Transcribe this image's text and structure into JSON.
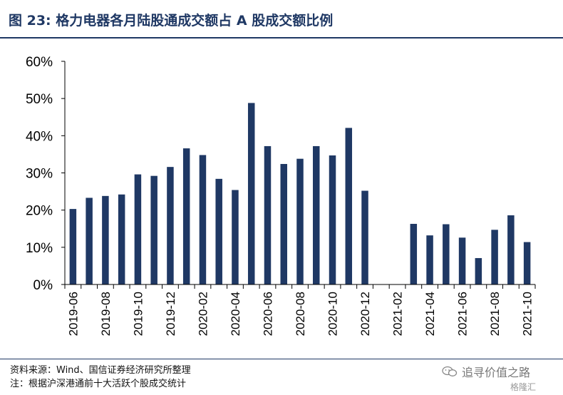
{
  "figure": {
    "title": "图 23: 格力电器各月陆股通成交额占 A 股成交额比例",
    "source": "资料来源：Wind、国信证券经济研究所整理",
    "note": "注：根据沪深港通前十大活跃个股成交统计",
    "watermark": "追寻价值之路",
    "watermark_brand": "格隆汇"
  },
  "colors": {
    "bar": "#1f3864",
    "title": "#1f3864"
  },
  "chart_data": {
    "type": "bar",
    "categories": [
      "2019-06",
      "2019-07",
      "2019-08",
      "2019-09",
      "2019-10",
      "2019-11",
      "2019-12",
      "2020-01",
      "2020-02",
      "2020-03",
      "2020-04",
      "2020-05",
      "2020-06",
      "2020-07",
      "2020-08",
      "2020-09",
      "2020-10",
      "2020-11",
      "2020-12",
      "2021-01",
      "2021-02",
      "2021-03",
      "2021-04",
      "2021-05",
      "2021-06",
      "2021-07",
      "2021-08",
      "2021-09",
      "2021-10"
    ],
    "tick_labels": [
      "2019-06",
      "2019-08",
      "2019-10",
      "2019-12",
      "2020-02",
      "2020-04",
      "2020-06",
      "2020-08",
      "2020-10",
      "2020-12",
      "2021-02",
      "2021-04",
      "2021-06",
      "2021-08",
      "2021-10"
    ],
    "values": [
      20.3,
      23.3,
      23.8,
      24.2,
      29.6,
      29.2,
      31.6,
      36.6,
      34.8,
      28.4,
      25.4,
      48.8,
      37.2,
      32.4,
      33.8,
      37.2,
      34.7,
      42.1,
      25.2,
      null,
      null,
      16.3,
      13.2,
      16.2,
      12.6,
      7.1,
      14.7,
      18.6,
      11.4
    ],
    "ylim": [
      0,
      60
    ],
    "yticks": [
      "0%",
      "10%",
      "20%",
      "30%",
      "40%",
      "50%",
      "60%"
    ],
    "grid": false
  }
}
